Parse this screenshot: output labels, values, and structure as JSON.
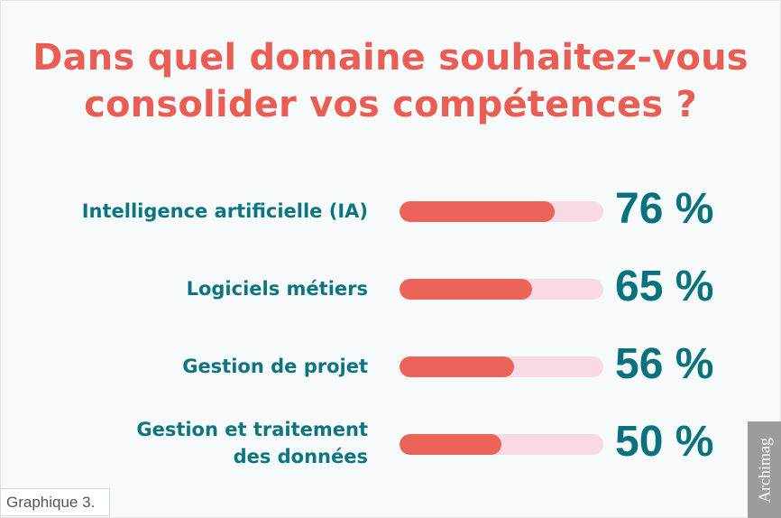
{
  "chart": {
    "title": "Dans quel domaine souhaitez-vous consolider vos compétences ?",
    "title_line1": "Dans quel domaine souhaitez-vous",
    "title_line2": "consolider vos compétences ?",
    "items": [
      {
        "label": "Intelligence artificielle (IA)",
        "value": 76,
        "display": "76 %"
      },
      {
        "label": "Logiciels métiers",
        "value": 65,
        "display": "65 %"
      },
      {
        "label": "Gestion de projet",
        "value": 56,
        "display": "56 %"
      },
      {
        "label_line1": "Gestion et traitement",
        "label_line2": "des données",
        "value": 50,
        "display": "50 %"
      }
    ],
    "caption": "Graphique 3.",
    "source": "Archimag",
    "colors": {
      "title": "#ea5d54",
      "label": "#0e7580",
      "bar_fill": "#ec6359",
      "bar_track": "#f8d9e5",
      "value": "#0a727c",
      "background": "#f6fafb",
      "source_badge": "#9c9c9c"
    }
  },
  "chart_data": {
    "type": "bar",
    "orientation": "horizontal",
    "title": "Dans quel domaine souhaitez-vous consolider vos compétences ?",
    "categories": [
      "Intelligence artificielle (IA)",
      "Logiciels métiers",
      "Gestion de projet",
      "Gestion et traitement des données"
    ],
    "values": [
      76,
      65,
      56,
      50
    ],
    "unit": "%",
    "xlabel": "",
    "ylabel": "",
    "xlim": [
      0,
      100
    ],
    "grid": false,
    "legend": null,
    "annotations": [
      "Graphique 3.",
      "Archimag"
    ]
  }
}
